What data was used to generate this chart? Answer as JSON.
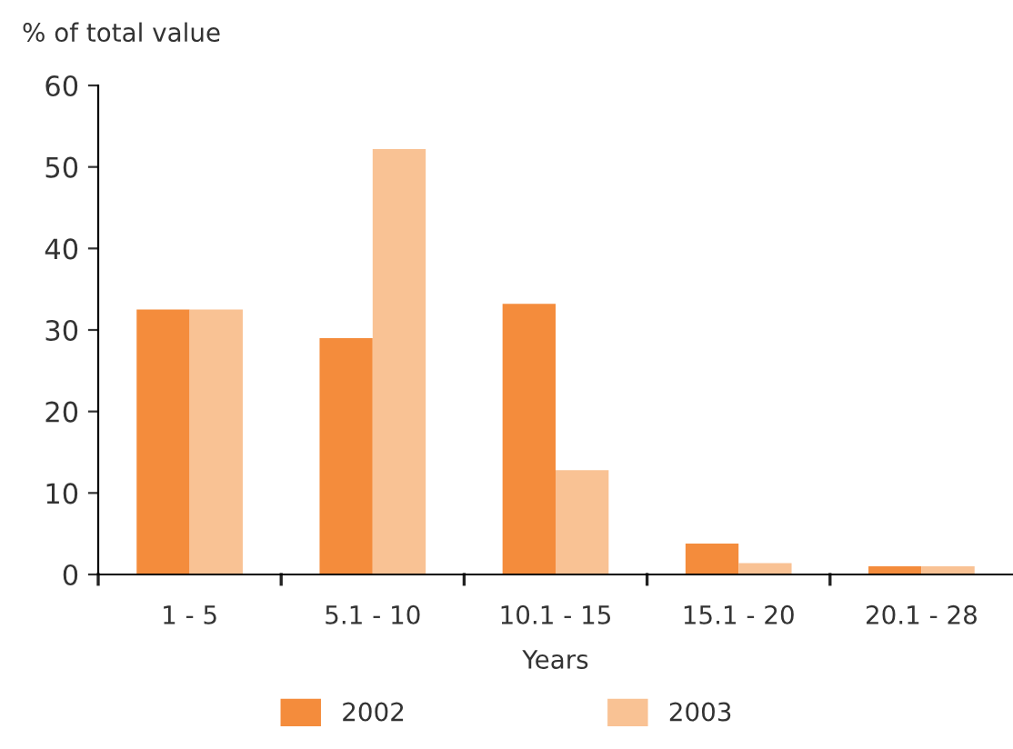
{
  "chart_data": {
    "type": "bar",
    "ylabel": "% of total value",
    "xlabel": "Years",
    "categories": [
      "1 - 5",
      "5.1 - 10",
      "10.1 - 15",
      "15.1 - 20",
      "20.1 - 28"
    ],
    "series": [
      {
        "name": "2002",
        "color": "#f48c3c",
        "values": [
          32.5,
          29,
          33.2,
          3.8,
          1
        ]
      },
      {
        "name": "2003",
        "color": "#f9c294",
        "values": [
          32.5,
          52.2,
          12.8,
          1.4,
          1
        ]
      }
    ],
    "ylim": [
      0,
      60
    ],
    "yticks": [
      0,
      10,
      20,
      30,
      40,
      50,
      60
    ],
    "grid": false,
    "legend": "bottom"
  }
}
